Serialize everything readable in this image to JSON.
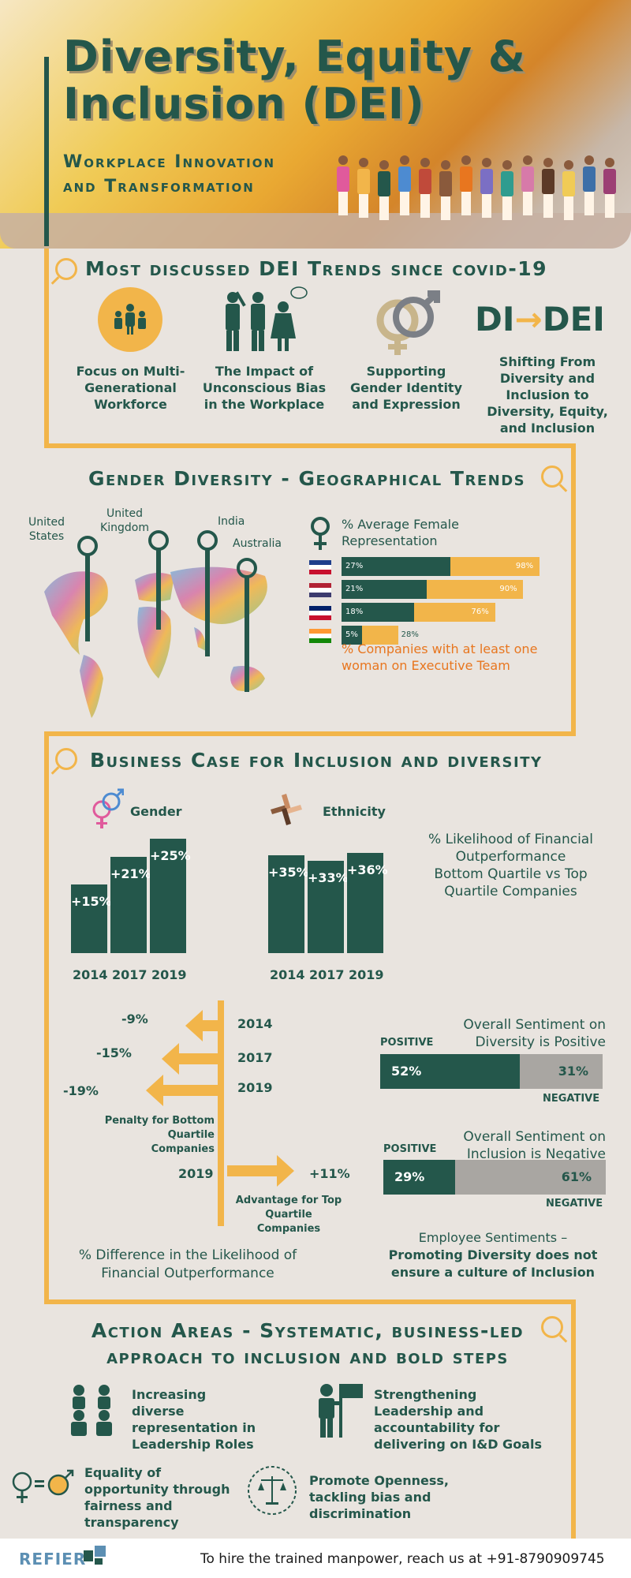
{
  "header": {
    "title": "Diversity, Equity & Inclusion (DEI)",
    "subtitle_line1": "Workplace Innovation",
    "subtitle_line2": "and Transformation"
  },
  "trends": {
    "title": "Most discussed DEI Trends since covid-19",
    "items": [
      {
        "label": "Focus on Multi-Generational Workforce",
        "icon": "group-people-icon"
      },
      {
        "label": "The Impact of Unconscious Bias in the Workplace",
        "icon": "bias-people-icon"
      },
      {
        "label": "Supporting Gender Identity and Expression",
        "icon": "gender-symbols-icon"
      },
      {
        "label": "Shifting From Diversity and Inclusion to Diversity, Equity, and Inclusion",
        "icon": "di-to-dei-icon"
      }
    ],
    "di_left": "DI",
    "di_right": "DEI"
  },
  "gender_geo": {
    "title": "Gender Diversity - Geographical Trends",
    "pins": [
      {
        "label": "United States"
      },
      {
        "label": "United Kingdom"
      },
      {
        "label": "India"
      },
      {
        "label": "Australia"
      }
    ],
    "legend_female": "% Average Female Representation",
    "legend_exec": "% Companies with at least one woman on Executive Team",
    "rows": [
      {
        "country": "Australia",
        "flag": "australia-flag-icon",
        "female": "27%",
        "exec": "98%",
        "female_val": 27,
        "exec_val": 98
      },
      {
        "country": "United States",
        "flag": "usa-flag-icon",
        "female": "21%",
        "exec": "90%",
        "female_val": 21,
        "exec_val": 90
      },
      {
        "country": "United Kingdom",
        "flag": "uk-flag-icon",
        "female": "18%",
        "exec": "76%",
        "female_val": 18,
        "exec_val": 76
      },
      {
        "country": "India",
        "flag": "india-flag-icon",
        "female": "5%",
        "exec": "28%",
        "female_val": 5,
        "exec_val": 28
      }
    ]
  },
  "business": {
    "title": "Business Case for Inclusion and diversity",
    "gender_label": "Gender",
    "ethnicity_label": "Ethnicity",
    "gender_bars": [
      {
        "year": "2014",
        "value": "+15%",
        "v": 15
      },
      {
        "year": "2017",
        "value": "+21%",
        "v": 21
      },
      {
        "year": "2019",
        "value": "+25%",
        "v": 25
      }
    ],
    "ethnicity_bars": [
      {
        "year": "2014",
        "value": "+35%",
        "v": 35
      },
      {
        "year": "2017",
        "value": "+33%",
        "v": 33
      },
      {
        "year": "2019",
        "value": "+36%",
        "v": 36
      }
    ],
    "likelihood_line1": "% Likelihood of Financial",
    "likelihood_line2": "Outperformance",
    "likelihood_dash": "–",
    "likelihood_line3": "Bottom Quartile vs Top",
    "likelihood_line4": "Quartile Companies",
    "penalty": [
      {
        "year": "2014",
        "value": "-9%"
      },
      {
        "year": "2017",
        "value": "-15%"
      },
      {
        "year": "2019",
        "value": "-19%"
      }
    ],
    "penalty_label_1": "Penalty for Bottom Quartile",
    "penalty_label_2": "Companies",
    "advantage": {
      "year": "2019",
      "value": "+11%"
    },
    "advantage_label_1": "Advantage for Top",
    "advantage_label_2": "Quartile Companies",
    "diff_caption_1": "% Difference in the Likelihood of",
    "diff_caption_2": "Financial Outperformance",
    "sentiment_diversity": {
      "title_1": "Overall Sentiment on",
      "title_2": "Diversity is Positive",
      "positive_label": "POSITIVE",
      "negative_label": "NEGATIVE",
      "positive": "52%",
      "negative": "31%",
      "pos_val": 52,
      "neg_val": 31
    },
    "sentiment_inclusion": {
      "title_1": "Overall Sentiment on",
      "title_2": "Inclusion is Negative",
      "positive_label": "POSITIVE",
      "negative_label": "NEGATIVE",
      "positive": "29%",
      "negative": "61%",
      "pos_val": 29,
      "neg_val": 61
    },
    "emp_caption_1": "Employee Sentiments –",
    "emp_caption_2": "Promoting Diversity does not",
    "emp_caption_3": "ensure a culture of Inclusion"
  },
  "actions": {
    "title_1": "Action Areas - Systematic, business-led",
    "title_2": "approach to inclusion and bold steps",
    "items": [
      {
        "label": "Increasing diverse representation in Leadership Roles",
        "icon": "diverse-people-icon"
      },
      {
        "label": "Strengthening Leadership and accountability for delivering on I&D Goals",
        "icon": "leader-flag-icon"
      },
      {
        "label": "Equality of opportunity through fairness and transparency",
        "icon": "gender-equality-icon"
      },
      {
        "label": "Promote Openness, tackling bias and discrimination",
        "icon": "balance-scale-icon"
      }
    ]
  },
  "footer": {
    "brand": "REFIER",
    "contact": "To hire the trained manpower, reach us at +91-8790909745"
  },
  "colors": {
    "dark_green": "#24574b",
    "orange": "#f2b54a",
    "accent_orange_text": "#e8761f",
    "grey_bar": "#a9a6a2",
    "background": "#e9e4df"
  }
}
